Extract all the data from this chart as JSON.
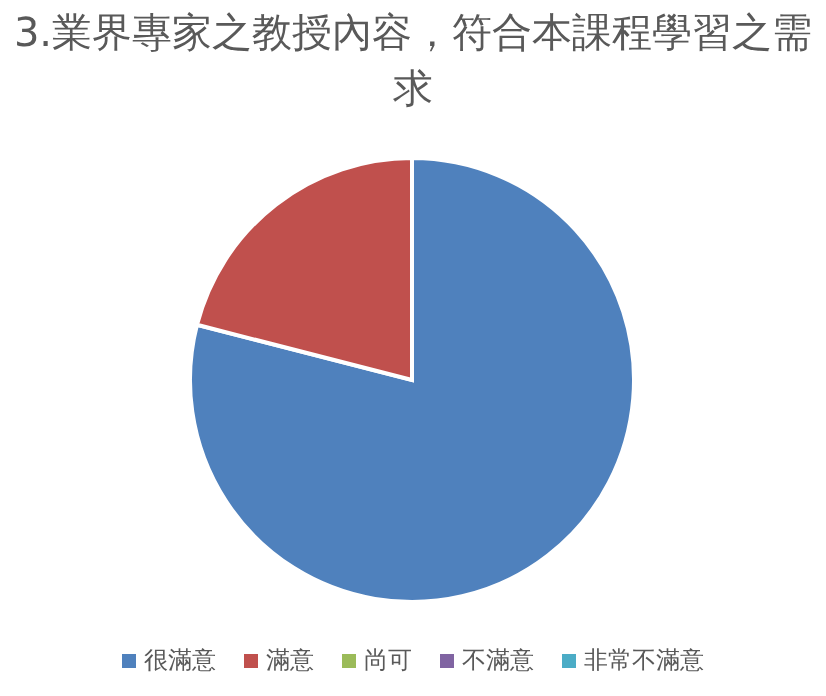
{
  "chart_data": {
    "type": "pie",
    "title": "3.業界專家之教授內容，符合本課程學習之需求",
    "categories": [
      "很滿意",
      "滿意",
      "尚可",
      "不滿意",
      "非常不滿意"
    ],
    "values": [
      79,
      21,
      0,
      0,
      0
    ],
    "colors": [
      "#4f81bd",
      "#c0504d",
      "#9bbb59",
      "#8064a2",
      "#4bacc6"
    ],
    "legend": "bottom"
  }
}
